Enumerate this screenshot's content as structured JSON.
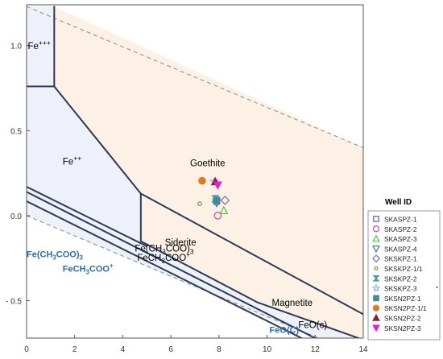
{
  "chart_data": {
    "type": "scatter",
    "subtype": "Eh-pH stability (Pourbaix) diagram with sample overlay",
    "xlim": [
      0,
      14
    ],
    "ylim": [
      -0.72,
      1.24
    ],
    "x_ticks": [
      0,
      2,
      4,
      6,
      8,
      10,
      12,
      14
    ],
    "x_tick_labels": [
      "0",
      "2",
      "4",
      "6",
      "8",
      "10",
      "12",
      "14"
    ],
    "y_ticks": [
      1.0,
      0.5,
      0.0,
      -0.5
    ],
    "y_tick_labels": [
      "1.0",
      "0.5",
      "0.0",
      "- 0.5"
    ],
    "grid": false,
    "legend_position": "right",
    "legend_title": "Well ID",
    "colors": {
      "aqueous_field": "#eef1f9",
      "mineral_field": "#fdf1e6",
      "boundary": "#2b3a55",
      "water_limit": "#888888",
      "blue_label": "#2b6cb0"
    },
    "water_stability_lines": [
      {
        "from": [
          0,
          1.23
        ],
        "to": [
          14,
          0.4
        ]
      },
      {
        "from": [
          0,
          0.0
        ],
        "to": [
          14,
          -0.83
        ]
      }
    ],
    "boundaries": [
      {
        "from": [
          0,
          0.76
        ],
        "to": [
          1.15,
          0.76
        ]
      },
      {
        "from": [
          1.15,
          0.76
        ],
        "to": [
          1.15,
          1.23
        ]
      },
      {
        "from": [
          1.15,
          0.76
        ],
        "to": [
          4.75,
          0.13
        ]
      },
      {
        "from": [
          4.75,
          0.13
        ],
        "to": [
          14,
          -0.58
        ]
      },
      {
        "from": [
          4.75,
          0.13
        ],
        "to": [
          4.75,
          -0.15
        ]
      },
      {
        "from": [
          4.75,
          -0.15
        ],
        "to": [
          9.6,
          -0.51
        ]
      },
      {
        "from": [
          0,
          0.17
        ],
        "to": [
          5.0,
          -0.18
        ]
      },
      {
        "from": [
          0,
          0.14
        ],
        "to": [
          12.55,
          -0.76
        ]
      },
      {
        "from": [
          0,
          0.085
        ],
        "to": [
          12.0,
          -0.76
        ]
      },
      {
        "from": [
          9.6,
          -0.51
        ],
        "to": [
          14,
          -0.73
        ]
      }
    ],
    "fields": [
      {
        "name": "aqueous",
        "polygon": [
          [
            0,
            1.23
          ],
          [
            1.15,
            1.23
          ],
          [
            1.15,
            0.76
          ],
          [
            4.75,
            0.13
          ],
          [
            4.75,
            -0.15
          ],
          [
            9.6,
            -0.51
          ],
          [
            14,
            -0.73
          ],
          [
            14,
            -0.76
          ],
          [
            12.55,
            -0.76
          ],
          [
            0,
            0.0
          ]
        ]
      },
      {
        "name": "goethite",
        "polygon": [
          [
            1.15,
            1.23
          ],
          [
            1.15,
            0.76
          ],
          [
            4.75,
            0.13
          ],
          [
            14,
            -0.58
          ],
          [
            14,
            0.4
          ]
        ]
      },
      {
        "name": "magnetite",
        "polygon": [
          [
            4.75,
            0.13
          ],
          [
            14,
            -0.58
          ],
          [
            14,
            -0.73
          ],
          [
            9.6,
            -0.51
          ],
          [
            4.75,
            -0.15
          ]
        ]
      }
    ],
    "region_labels": [
      {
        "text": "Fe+++",
        "html_base": "Fe",
        "html_sup": "+++",
        "x": 0.05,
        "y": 0.98,
        "color": "#000000"
      },
      {
        "text": "Fe++",
        "html_base": "Fe",
        "html_sup": "++",
        "x": 1.5,
        "y": 0.3,
        "color": "#000000"
      },
      {
        "text": "Goethite",
        "x": 6.8,
        "y": 0.29,
        "color": "#000000"
      },
      {
        "text": "Siderite",
        "x": 5.75,
        "y": -0.175,
        "color": "#000000"
      },
      {
        "text": "Magnetite",
        "x": 10.2,
        "y": -0.53,
        "color": "#000000"
      },
      {
        "text": "Fe(CH3COO)3",
        "x": 4.5,
        "y": -0.21,
        "color": "#000000"
      },
      {
        "text": "FeCH3COO+",
        "x": 4.6,
        "y": -0.265,
        "color": "#000000"
      },
      {
        "text": "Fe(CH3COO)3",
        "x": 0.0,
        "y": -0.245,
        "color": "#2b6cb0",
        "bold": true
      },
      {
        "text": "FeCH3COO+",
        "x": 1.5,
        "y": -0.33,
        "color": "#2b6cb0",
        "bold": true
      },
      {
        "text": "FeO(C)",
        "x": 10.1,
        "y": -0.69,
        "color": "#2b6cb0",
        "bold": true
      },
      {
        "text": "FeO(c)",
        "x": 11.3,
        "y": -0.66,
        "color": "#000000"
      }
    ],
    "series": [
      {
        "name": "SKASPZ-1",
        "marker": "square-open",
        "color": "#6a5aa8",
        "points": [
          [
            7.9,
            0.09
          ]
        ]
      },
      {
        "name": "SKASPZ-2",
        "marker": "circle-open",
        "color": "#d14a8a",
        "points": [
          [
            7.95,
            0.0
          ]
        ]
      },
      {
        "name": "SKASPZ-3",
        "marker": "triangle-up-open",
        "color": "#4cc24c",
        "points": [
          [
            8.2,
            0.03
          ]
        ]
      },
      {
        "name": "SKASPZ-4",
        "marker": "triangle-down-open",
        "color": "#3a6fb0",
        "points": [
          [
            7.9,
            0.075
          ]
        ]
      },
      {
        "name": "SKSKPZ-1",
        "marker": "diamond-open",
        "color": "#8a7090",
        "points": [
          [
            8.25,
            0.09
          ]
        ]
      },
      {
        "name": "SKSKPZ-1/1",
        "marker": "small-circle-open",
        "color": "#6a9a3a",
        "points": [
          [
            7.2,
            0.07
          ]
        ]
      },
      {
        "name": "SKSKPZ-2",
        "marker": "hourglass",
        "color": "#4a9aa0",
        "points": [
          [
            7.85,
            0.1
          ]
        ]
      },
      {
        "name": "SKSKPZ-3",
        "marker": "star-open",
        "color": "#8ab8d8",
        "points": [
          [
            7.8,
            0.2
          ]
        ]
      },
      {
        "name": "SKSN2PZ-1",
        "marker": "square-filled",
        "color": "#3a8aa0",
        "points": [
          [
            7.9,
            0.085
          ]
        ]
      },
      {
        "name": "SKSN2PZ-1/1",
        "marker": "circle-filled",
        "color": "#e07a20",
        "points": [
          [
            7.3,
            0.205
          ]
        ]
      },
      {
        "name": "SKSN2PZ-2",
        "marker": "triangle-up-filled",
        "color": "#8a2030",
        "points": [
          [
            7.85,
            0.2
          ]
        ]
      },
      {
        "name": "SKSN2PZ-3",
        "marker": "triangle-down-filled",
        "color": "#e020d0",
        "points": [
          [
            7.95,
            0.18
          ]
        ]
      }
    ]
  }
}
